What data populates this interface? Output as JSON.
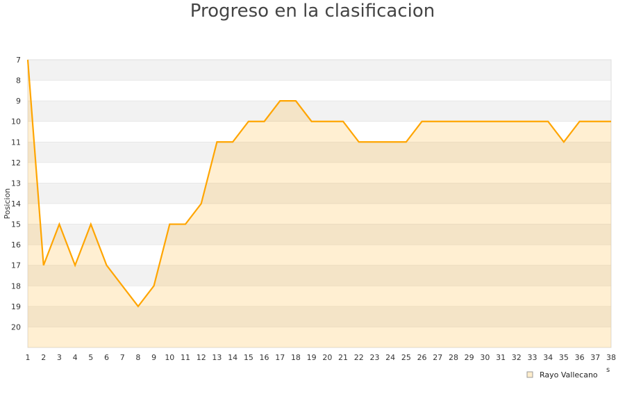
{
  "chart_data": {
    "type": "area",
    "title": "Progreso en la clasificacion",
    "ylabel": "Posicion",
    "xlabel": "",
    "clipped_axis_text": "s",
    "x": [
      1,
      2,
      3,
      4,
      5,
      6,
      7,
      8,
      9,
      10,
      11,
      12,
      13,
      14,
      15,
      16,
      17,
      18,
      19,
      20,
      21,
      22,
      23,
      24,
      25,
      26,
      27,
      28,
      29,
      30,
      31,
      32,
      33,
      34,
      35,
      36,
      37,
      38
    ],
    "y_ticks": [
      7,
      8,
      9,
      10,
      11,
      12,
      13,
      14,
      15,
      16,
      17,
      18,
      19,
      20
    ],
    "ylim": [
      7,
      21
    ],
    "y_inverted": true,
    "grid": "horizontal bands",
    "legend": "bottom-right",
    "series": [
      {
        "name": "Rayo Vallecano",
        "color": "#ffa500",
        "fill": "#ffedcc",
        "values": [
          7,
          17,
          15,
          17,
          15,
          17,
          18,
          19,
          18,
          15,
          15,
          14,
          11,
          11,
          10,
          10,
          9,
          9,
          10,
          10,
          10,
          11,
          11,
          11,
          11,
          10,
          10,
          10,
          10,
          10,
          10,
          10,
          10,
          10,
          11,
          10,
          10,
          10
        ]
      }
    ]
  }
}
